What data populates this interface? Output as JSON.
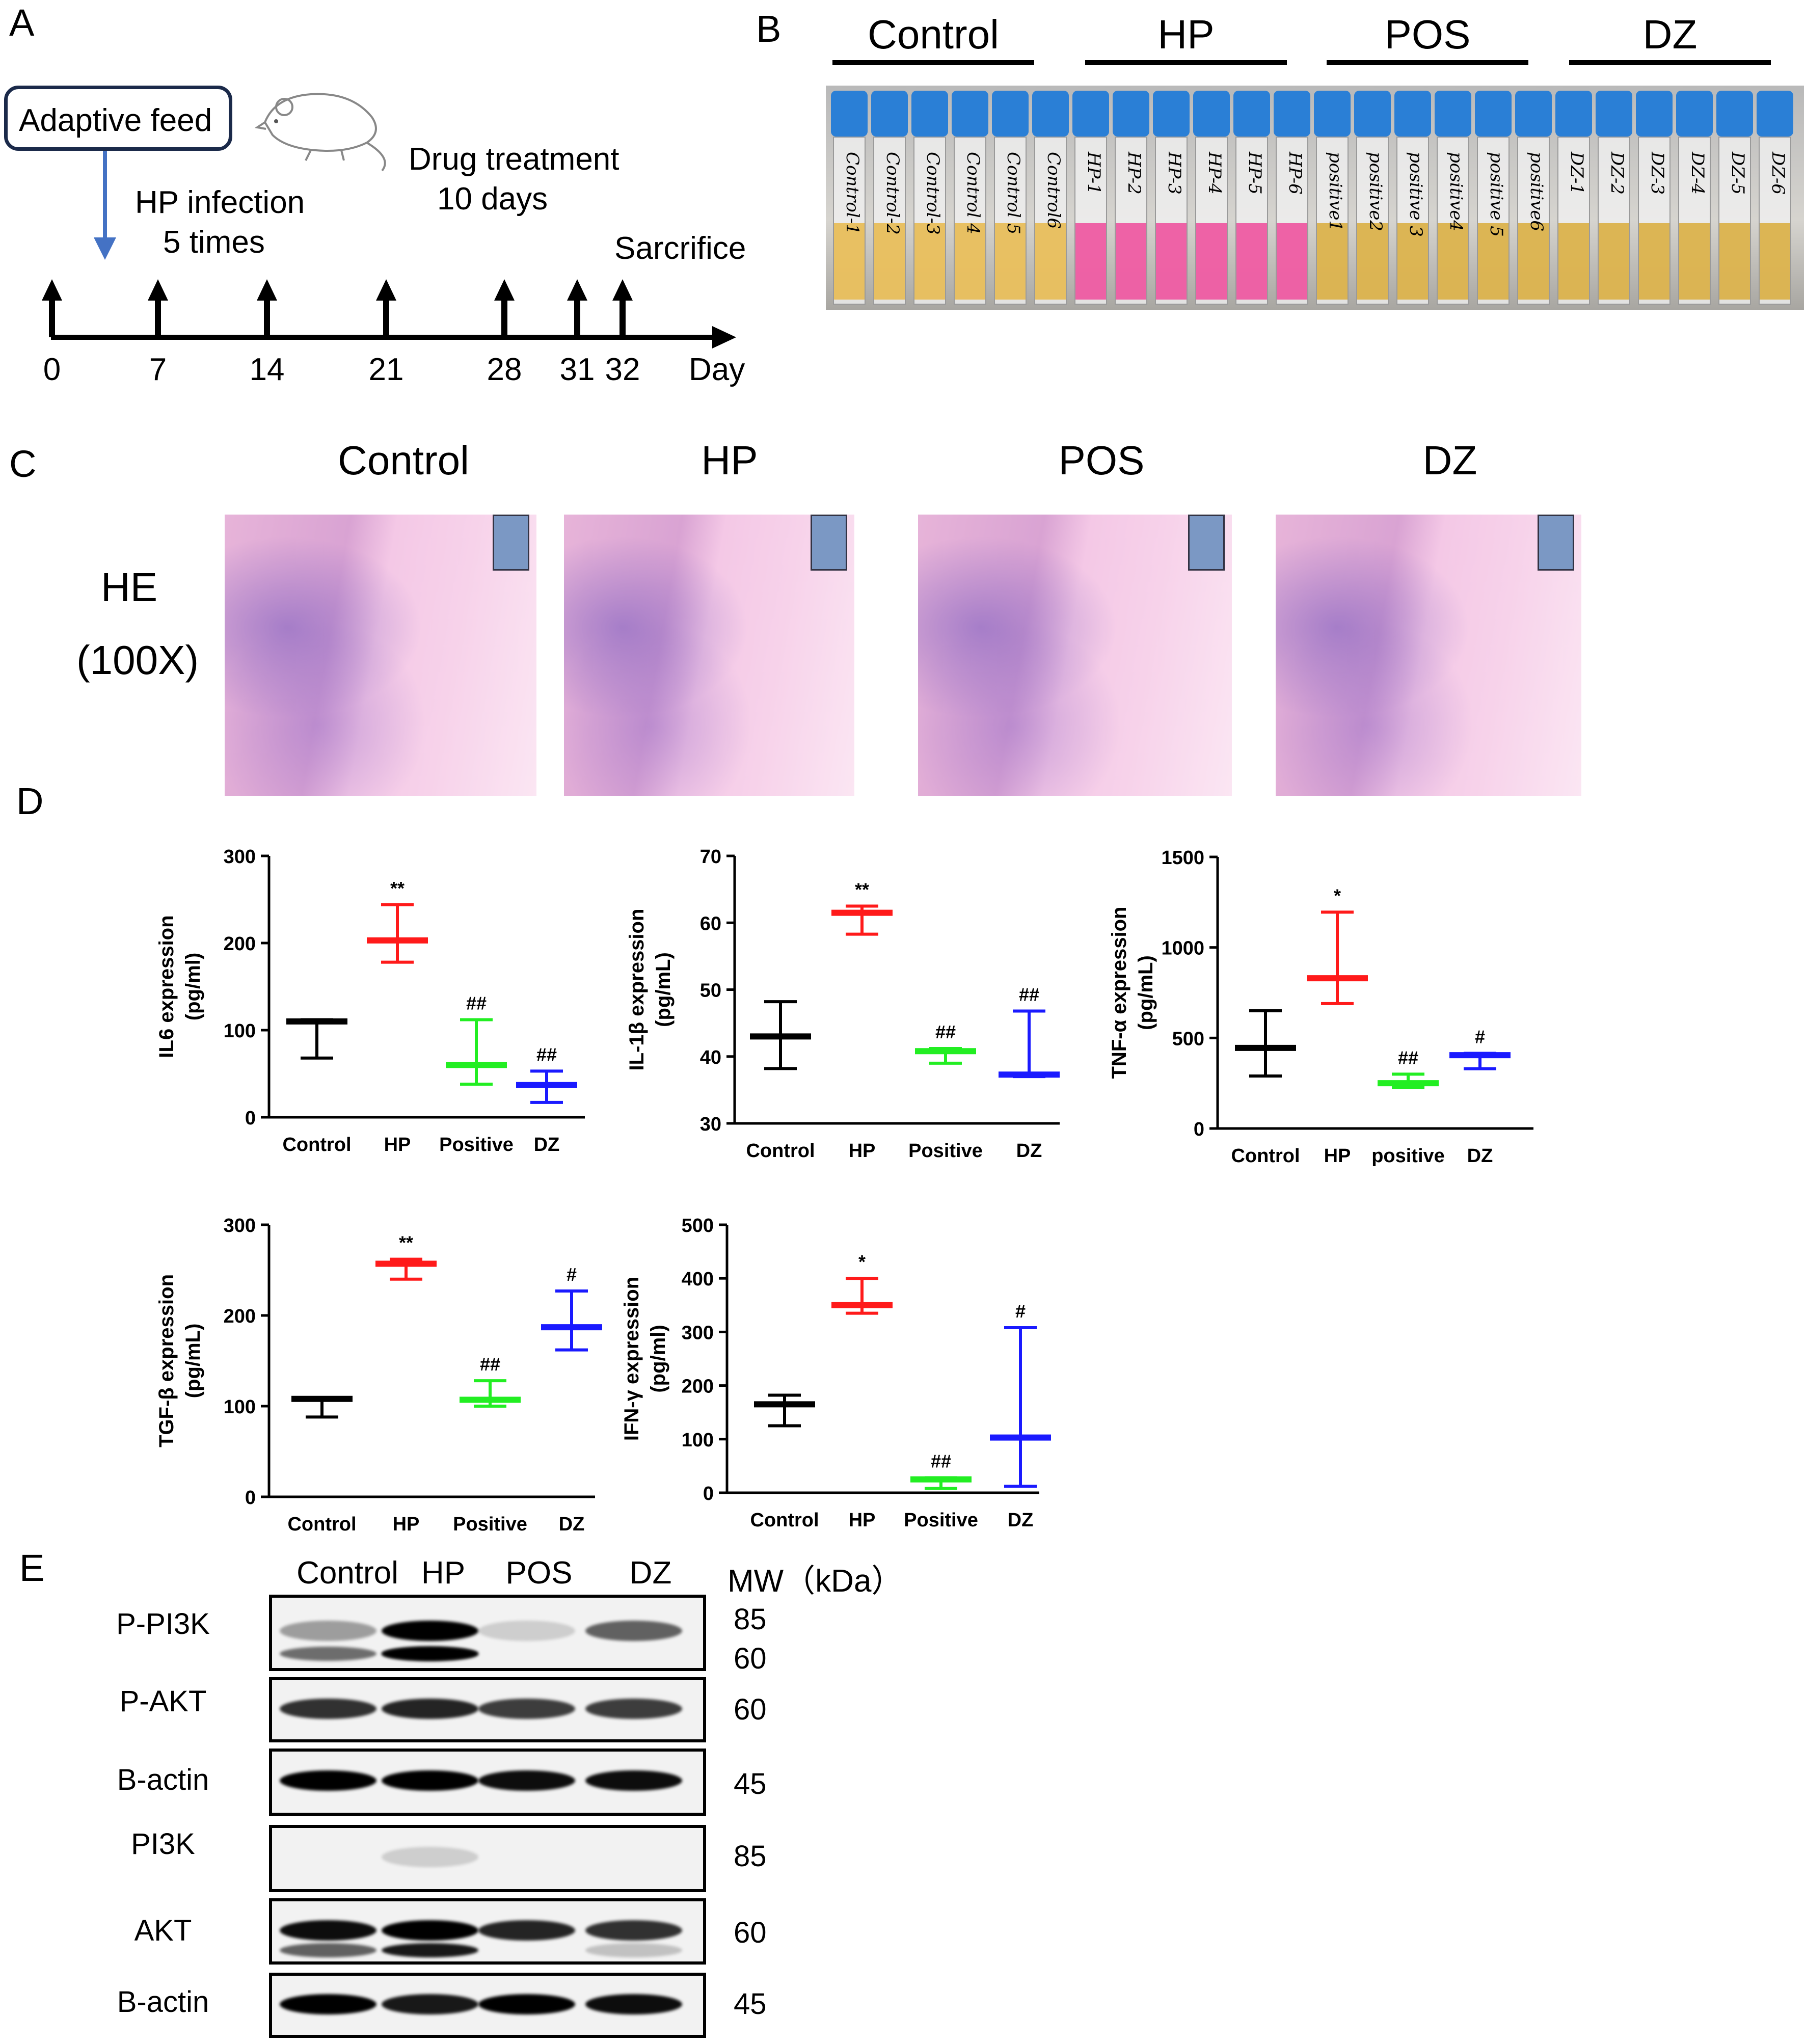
{
  "panels": {
    "a": "A",
    "b": "B",
    "c": "C",
    "d": "D",
    "e": "E"
  },
  "panel_a": {
    "box_label": "Adaptive feed",
    "hp_line1": "HP infection",
    "hp_line2": "5 times",
    "drug_line1": "Drug treatment",
    "drug_line2": "10 days",
    "sacrifice": "Sarcrifice",
    "day_ticks": [
      "0",
      "7",
      "14",
      "21",
      "28",
      "31",
      "32"
    ],
    "axis_label": "Day"
  },
  "panel_b": {
    "groups": [
      "Control",
      "HP",
      "POS",
      "DZ"
    ],
    "tube_labels": [
      "Control-1",
      "Control-2",
      "Control-3",
      "Control 4",
      "Control 5",
      "Control6",
      "HP-1",
      "HP-2",
      "HP-3",
      "HP-4",
      "HP-5",
      "HP-6",
      "positive1",
      "positive2",
      "positive 3",
      "positive4",
      "positive 5",
      "positive6",
      "DZ-1",
      "DZ-2",
      "DZ-3",
      "DZ-4",
      "DZ-5",
      "DZ-6"
    ]
  },
  "panel_c": {
    "groups": [
      "Control",
      "HP",
      "POS",
      "DZ"
    ],
    "stain_line1": "HE",
    "stain_line2": "(100X)"
  },
  "panel_d": {
    "chart_data": [
      {
        "type": "scatter",
        "ylabel": "IL6 expression (pg/ml)",
        "ylabel_line1": "IL6 expression",
        "ylabel_line2": "(pg/ml)",
        "categories": [
          "Control",
          "HP",
          "Positive",
          "DZ"
        ],
        "yticks": [
          "0",
          "100",
          "200",
          "300"
        ],
        "ylim": [
          0,
          300
        ],
        "mean": [
          110,
          203,
          60,
          37
        ],
        "err_low": [
          68,
          178,
          38,
          17
        ],
        "err_high": [
          112,
          244,
          112,
          53
        ],
        "sig": [
          "",
          "**",
          "##",
          "##"
        ],
        "colors": [
          "#000000",
          "#ff1a1a",
          "#22ee22",
          "#1a1aff"
        ]
      },
      {
        "type": "scatter",
        "ylabel": "IL-1β expression (pg/mL)",
        "ylabel_line1": "IL-1β expression",
        "ylabel_line2": "(pg/mL)",
        "categories": [
          "Control",
          "HP",
          "Positive",
          "DZ"
        ],
        "yticks": [
          "30",
          "40",
          "50",
          "60",
          "70"
        ],
        "ylim": [
          30,
          70
        ],
        "mean": [
          43,
          61.5,
          40.8,
          37.3
        ],
        "err_low": [
          38.2,
          58.3,
          39,
          37
        ],
        "err_high": [
          48.2,
          62.5,
          41.2,
          46.8
        ],
        "sig": [
          "",
          "**",
          "##",
          "##"
        ],
        "colors": [
          "#000000",
          "#ff1a1a",
          "#22ee22",
          "#1a1aff"
        ]
      },
      {
        "type": "scatter",
        "ylabel": "TNF-α expression (pg/mL)",
        "ylabel_line1": "TNF-α expression",
        "ylabel_line2": "(pg/mL)",
        "categories": [
          "Control",
          "HP",
          "positive",
          "DZ"
        ],
        "yticks": [
          "0",
          "500",
          "1000",
          "1500"
        ],
        "ylim": [
          0,
          1500
        ],
        "mean": [
          445,
          830,
          250,
          405
        ],
        "err_low": [
          290,
          690,
          225,
          330
        ],
        "err_high": [
          650,
          1195,
          300,
          415
        ],
        "sig": [
          "",
          "*",
          "##",
          "#"
        ],
        "colors": [
          "#000000",
          "#ff1a1a",
          "#22ee22",
          "#1a1aff"
        ]
      },
      {
        "type": "scatter",
        "ylabel": "TGF-β expression (pg/mL)",
        "ylabel_line1": "TGF-β expression",
        "ylabel_line2": "(pg/mL)",
        "categories": [
          "Control",
          "HP",
          "Positive",
          "DZ"
        ],
        "yticks": [
          "0",
          "100",
          "200",
          "300"
        ],
        "ylim": [
          0,
          300
        ],
        "mean": [
          108,
          257,
          107,
          187
        ],
        "err_low": [
          88,
          240,
          100,
          162
        ],
        "err_high": [
          109,
          262,
          128,
          227
        ],
        "sig": [
          "",
          "**",
          "##",
          "#"
        ],
        "colors": [
          "#000000",
          "#ff1a1a",
          "#22ee22",
          "#1a1aff"
        ]
      },
      {
        "type": "scatter",
        "ylabel": "IFN-γ expression (pg/ml)",
        "ylabel_line1": "IFN-γ expression",
        "ylabel_line2": "(pg/ml)",
        "categories": [
          "Control",
          "HP",
          "Positive",
          "DZ"
        ],
        "yticks": [
          "0",
          "100",
          "200",
          "300",
          "400",
          "500"
        ],
        "ylim": [
          0,
          500
        ],
        "mean": [
          165,
          350,
          25,
          103
        ],
        "err_low": [
          125,
          335,
          8,
          12
        ],
        "err_high": [
          182,
          400,
          28,
          308
        ],
        "sig": [
          "",
          "*",
          "##",
          "#"
        ],
        "colors": [
          "#000000",
          "#ff1a1a",
          "#22ee22",
          "#1a1aff"
        ]
      }
    ]
  },
  "panel_e": {
    "lanes": [
      "Control",
      "HP",
      "POS",
      "DZ"
    ],
    "mw_header": "MW（kDa）",
    "blots": [
      {
        "name": "P-PI3K",
        "mw": [
          "85",
          "60"
        ]
      },
      {
        "name": "P-AKT",
        "mw": [
          "60"
        ]
      },
      {
        "name": "B-actin",
        "mw": [
          "45"
        ]
      },
      {
        "name": "PI3K",
        "mw": [
          "85"
        ]
      },
      {
        "name": "AKT",
        "mw": [
          "60"
        ]
      },
      {
        "name": "B-actin",
        "mw": [
          "45"
        ]
      }
    ]
  }
}
